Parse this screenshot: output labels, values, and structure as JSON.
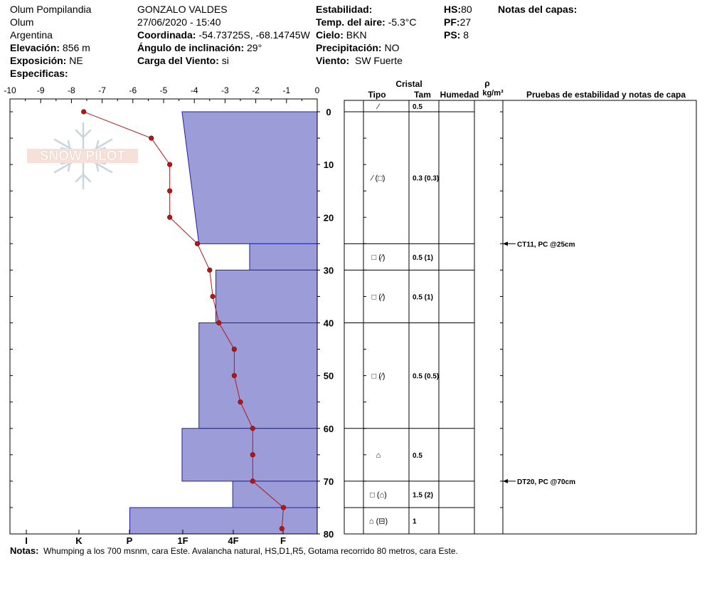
{
  "header": {
    "location": "Olum Pompilandia",
    "region": "Olum",
    "country": "Argentina",
    "elevation_label": "Elevación:",
    "elevation_value": "856 m",
    "exposure_label": "Exposición:",
    "exposure_value": "NE",
    "specifics_label": "Especificas:",
    "observer": "GONZALO VALDES",
    "datetime": "27/06/2020 - 15:40",
    "coord_label": "Coordinada:",
    "coord_value": "-54.73725S, -68.14745W",
    "slope_label": "Ángulo de inclinación:",
    "slope_value": "29°",
    "wind_load_label": "Carga del Viento:",
    "wind_load_value": "si",
    "stability_label": "Estabilidad:",
    "air_temp_label": "Temp. del aire:",
    "air_temp_value": "-5.3°C",
    "sky_label": "Cielo:",
    "sky_value": "BKN",
    "precip_label": "Precipitación:",
    "precip_value": "NO",
    "wind_label": "Viento:",
    "wind_value": "SW Fuerte",
    "hs_label": "HS:",
    "hs_value": "80",
    "pf_label": "PF:",
    "pf_value": "27",
    "ps_label": "PS:",
    "ps_value": "8",
    "layer_notes_label": "Notas del capas:"
  },
  "watermark": "SNOW PILOT",
  "table_headers": {
    "cristal": "Cristal",
    "tipo": "Tipo",
    "tam": "Tam",
    "humedad": "Humedad",
    "rho": "ρ",
    "density_unit": "kg/m³",
    "tests": "Pruebas de estabilidad y notas de capa"
  },
  "layers": [
    {
      "top": 0,
      "bottom": 0,
      "tipo": "⁄",
      "tam": "0.5",
      "label_depth": -1
    },
    {
      "top": 0,
      "bottom": 25,
      "tipo": "⁄ (□)",
      "tam": "0.3 (0.3)",
      "label_depth": 12.5
    },
    {
      "top": 25,
      "bottom": 30,
      "tipo": "□ (⁄)",
      "tam": "0.5 (1)",
      "label_depth": 27.5
    },
    {
      "top": 30,
      "bottom": 40,
      "tipo": "□ (⁄)",
      "tam": "0.5 (1)",
      "label_depth": 35
    },
    {
      "top": 40,
      "bottom": 60,
      "tipo": "□ (⁄)",
      "tam": "0.5 (0.5)",
      "label_depth": 50
    },
    {
      "top": 60,
      "bottom": 70,
      "tipo": "⌂",
      "tam": "0.5",
      "label_depth": 65
    },
    {
      "top": 70,
      "bottom": 75,
      "tipo": "□ (⌂)",
      "tam": "1.5 (2)",
      "label_depth": 72.5
    },
    {
      "top": 75,
      "bottom": 80,
      "tipo": "⌂ (⊟)",
      "tam": "1",
      "label_depth": 77.5
    }
  ],
  "tests": [
    {
      "depth": 25,
      "text": "CT11, PC @25cm"
    },
    {
      "depth": 70,
      "text": "DT20, PC @70cm"
    }
  ],
  "notes": {
    "label": "Notas:",
    "text": "Whumping a los 700 msnm, cara Este. Avalancha natural, HS,D1,R5, Gotama recorrido 80 metros, cara Este."
  },
  "chart_data": {
    "type": "line",
    "temp_axis": {
      "ticks": [
        "-10",
        "-9",
        "-8",
        "-7",
        "-6",
        "-5",
        "-4",
        "-3",
        "-2",
        "-1",
        "0"
      ],
      "range": [
        -10,
        0
      ]
    },
    "depth_axis": {
      "ticks": [
        "0",
        "10",
        "20",
        "30",
        "40",
        "50",
        "60",
        "70",
        "80"
      ],
      "range": [
        0,
        80
      ]
    },
    "hardness_axis": {
      "labels": [
        "I",
        "K",
        "P",
        "1F",
        "4F",
        "F"
      ]
    },
    "hardness_profile": [
      {
        "top": 0,
        "bottom": 25,
        "hardness_top": -4.4,
        "hardness_bottom": -3.85
      },
      {
        "top": 25,
        "bottom": 30,
        "hardness": -2.2
      },
      {
        "top": 30,
        "bottom": 40,
        "hardness": -3.3
      },
      {
        "top": 40,
        "bottom": 60,
        "hardness": -3.85
      },
      {
        "top": 60,
        "bottom": 70,
        "hardness": -4.4
      },
      {
        "top": 70,
        "bottom": 75,
        "hardness": -2.75
      },
      {
        "top": 75,
        "bottom": 80,
        "hardness": -6.1
      }
    ],
    "temperature_profile": [
      {
        "depth": 0,
        "temp": -7.6
      },
      {
        "depth": 5,
        "temp": -5.4
      },
      {
        "depth": 10,
        "temp": -4.8
      },
      {
        "depth": 15,
        "temp": -4.8
      },
      {
        "depth": 20,
        "temp": -4.8
      },
      {
        "depth": 25,
        "temp": -3.9
      },
      {
        "depth": 30,
        "temp": -3.5
      },
      {
        "depth": 35,
        "temp": -3.4
      },
      {
        "depth": 40,
        "temp": -3.2
      },
      {
        "depth": 45,
        "temp": -2.7
      },
      {
        "depth": 50,
        "temp": -2.7
      },
      {
        "depth": 55,
        "temp": -2.5
      },
      {
        "depth": 60,
        "temp": -2.1
      },
      {
        "depth": 65,
        "temp": -2.1
      },
      {
        "depth": 70,
        "temp": -2.1
      },
      {
        "depth": 75,
        "temp": -1.1
      },
      {
        "depth": 79,
        "temp": -1.15
      }
    ]
  }
}
